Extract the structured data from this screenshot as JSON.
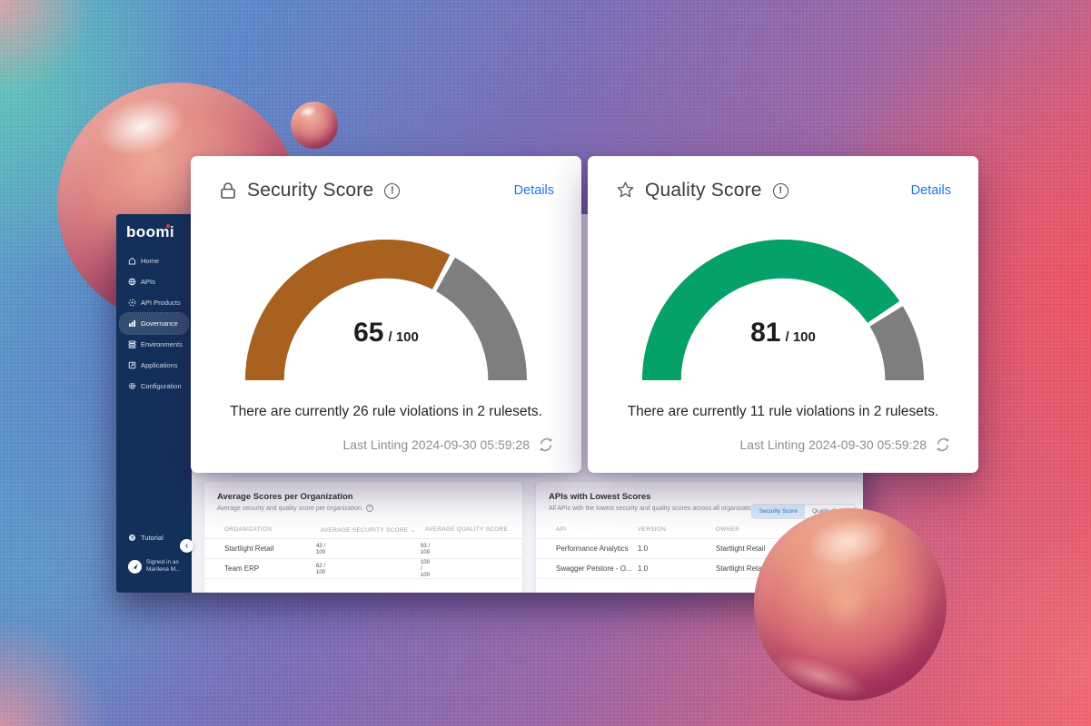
{
  "sidebar": {
    "logo": "boomi",
    "items": [
      {
        "label": "Home",
        "icon": "home-icon"
      },
      {
        "label": "APIs",
        "icon": "apis-icon"
      },
      {
        "label": "API Products",
        "icon": "api-products-icon"
      },
      {
        "label": "Governance",
        "icon": "governance-icon",
        "active": true
      },
      {
        "label": "Environments",
        "icon": "environments-icon"
      },
      {
        "label": "Applications",
        "icon": "applications-icon"
      },
      {
        "label": "Configuration",
        "icon": "configuration-icon"
      }
    ],
    "tutorial_label": "Tutorial",
    "signed_in_line1": "Signed in as",
    "signed_in_line2": "Marilena M...",
    "collapse_glyph": "‹"
  },
  "score_cards": [
    {
      "title": "Security Score",
      "icon": "lock-icon",
      "details_label": "Details",
      "score": 65,
      "max": 100,
      "score_display": "65",
      "max_display": "/ 100",
      "violations_text": "There are currently 26 rule violations in 2 rulesets.",
      "last_linting": "Last Linting 2024-09-30 05:59:28",
      "arc_color": "#A8611E"
    },
    {
      "title": "Quality Score",
      "icon": "star-icon",
      "details_label": "Details",
      "score": 81,
      "max": 100,
      "score_display": "81",
      "max_display": "/ 100",
      "violations_text": "There are currently 11 rule violations in 2 rulesets.",
      "last_linting": "Last Linting 2024-09-30 05:59:28",
      "arc_color": "#04A268"
    }
  ],
  "org_panel": {
    "title": "Average Scores per Organization",
    "subtitle": "Average security and quality score per organization.",
    "columns": [
      "ORGANIZATION",
      "AVERAGE SECURITY SCORE",
      "AVERAGE QUALITY SCORE"
    ],
    "sort_indicator": "⌄",
    "rows": [
      {
        "organization": "Startlight Retail",
        "security_label": "43 / 100",
        "security_pct": 43,
        "quality_label": "93 / 100",
        "quality_pct": 93
      },
      {
        "organization": "Team ERP",
        "security_label": "62 / 100",
        "security_pct": 62,
        "quality_label": "100 / 100",
        "quality_pct": 100
      }
    ]
  },
  "apis_panel": {
    "title": "APIs with Lowest Scores",
    "subtitle": "All APIs with the lowest security and quality scores across all organizations.",
    "tabs": [
      {
        "label": "Security Score",
        "active": true
      },
      {
        "label": "Quality Score",
        "active": false
      }
    ],
    "columns": [
      "API",
      "VERSION",
      "OWNER"
    ],
    "rows": [
      {
        "api": "Performance Analytics",
        "version": "1.0",
        "owner": "Startlight Retail"
      },
      {
        "api": "Swagger Petstore - O...",
        "version": "1.0",
        "owner": "Startlight Retail"
      }
    ]
  },
  "colors": {
    "details_link": "#1B76E8",
    "gauge_track": "#7E7E7E",
    "security_bar_fill": "#F0A23C",
    "quality_bar_fill": "#3EC796",
    "sidebar_bg": "#13305B",
    "tab_active_bg": "#D9EDFB",
    "tab_active_text": "#1E78E0"
  },
  "chart_data": [
    {
      "type": "gauge",
      "title": "Security Score",
      "value": 65,
      "max": 100,
      "segments": [
        {
          "label": "score",
          "value": 65,
          "color": "#A8611E"
        },
        {
          "label": "remaining",
          "value": 35,
          "color": "#7E7E7E"
        }
      ]
    },
    {
      "type": "gauge",
      "title": "Quality Score",
      "value": 81,
      "max": 100,
      "segments": [
        {
          "label": "score",
          "value": 81,
          "color": "#04A268"
        },
        {
          "label": "remaining",
          "value": 19,
          "color": "#7E7E7E"
        }
      ]
    },
    {
      "type": "bar",
      "title": "Average Scores per Organization",
      "categories": [
        "Startlight Retail",
        "Team ERP"
      ],
      "series": [
        {
          "name": "Average Security Score",
          "values": [
            43,
            62
          ]
        },
        {
          "name": "Average Quality Score",
          "values": [
            93,
            100
          ]
        }
      ],
      "xlim": [
        0,
        100
      ]
    }
  ]
}
